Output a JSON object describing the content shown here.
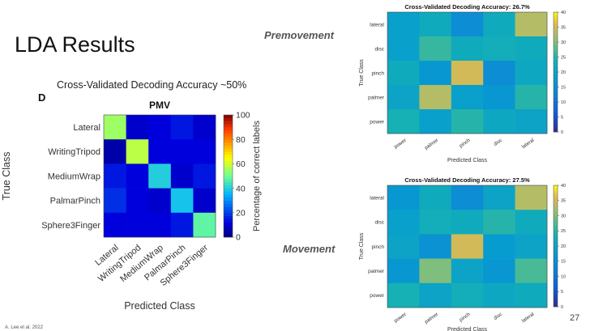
{
  "slide": {
    "title": "LDA Results",
    "page_number": "27",
    "footnote": "A. Lee et al. 2022"
  },
  "left_chart": {
    "accuracy_text": "Cross-Validated Decoding Accuracy ~50%",
    "panel_letter": "D"
  },
  "sections": {
    "premove": "Premovement",
    "move": "Movement"
  },
  "chart_data": [
    {
      "type": "heatmap",
      "title": "PMV",
      "xlabel": "Predicted Class",
      "ylabel": "True Class",
      "x": [
        "Lateral",
        "WritingTripod",
        "MediumWrap",
        "PalmarPinch",
        "Sphere3Finger"
      ],
      "y": [
        "Lateral",
        "WritingTripod",
        "MediumWrap",
        "PalmarPinch",
        "Sphere3Finger"
      ],
      "values": [
        [
          55,
          10,
          12,
          15,
          10
        ],
        [
          5,
          58,
          12,
          12,
          12
        ],
        [
          15,
          12,
          40,
          10,
          15
        ],
        [
          18,
          12,
          10,
          38,
          10
        ],
        [
          12,
          12,
          12,
          15,
          48
        ]
      ],
      "colorbar": {
        "min": 0,
        "max": 100,
        "ticks": [
          0,
          20,
          40,
          60,
          80,
          100
        ],
        "label": "Percentage of correct labels"
      }
    },
    {
      "type": "heatmap",
      "title": "Cross-Validated Decoding Accuracy: 26.7%",
      "xlabel": "Predicted Class",
      "ylabel": "True Class",
      "x": [
        "power",
        "palmer",
        "pinch",
        "disc",
        "lateral"
      ],
      "y": [
        "lateral",
        "disc",
        "pinch",
        "palmer",
        "power"
      ],
      "values": [
        [
          19,
          22,
          15,
          22,
          33
        ],
        [
          19,
          26,
          22,
          23,
          22
        ],
        [
          22,
          17,
          35,
          15,
          21
        ],
        [
          20,
          33,
          19,
          17,
          25
        ],
        [
          24,
          19,
          25,
          21,
          20
        ]
      ],
      "colorbar": {
        "min": 0,
        "max": 40,
        "ticks": [
          0,
          5,
          10,
          15,
          20,
          25,
          30,
          35,
          40
        ]
      }
    },
    {
      "type": "heatmap",
      "title": "Cross-Validated Decoding Accuracy: 27.5%",
      "xlabel": "Predicted Class",
      "ylabel": "True Class",
      "x": [
        "power",
        "palmer",
        "pinch",
        "disc",
        "lateral"
      ],
      "y": [
        "lateral",
        "disc",
        "pinch",
        "palmer",
        "power"
      ],
      "values": [
        [
          17,
          22,
          15,
          20,
          33
        ],
        [
          19,
          23,
          22,
          25,
          22
        ],
        [
          20,
          16,
          35,
          18,
          20
        ],
        [
          17,
          30,
          20,
          17,
          27
        ],
        [
          24,
          20,
          23,
          21,
          22
        ]
      ],
      "colorbar": {
        "min": 0,
        "max": 40,
        "ticks": [
          0,
          5,
          10,
          15,
          20,
          25,
          30,
          35,
          40
        ]
      }
    }
  ]
}
